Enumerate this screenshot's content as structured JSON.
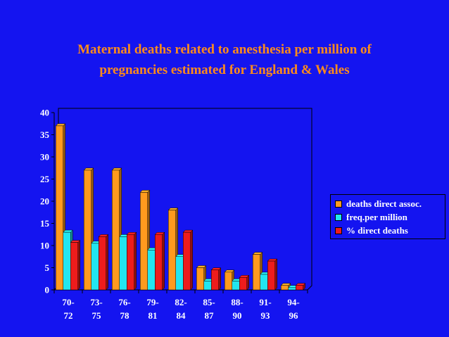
{
  "title": {
    "line1": "Maternal deaths related to anesthesia per million of",
    "line2": "pregnancies estimated for England & Wales"
  },
  "colors": {
    "background": "#1414f0",
    "title": "#ff8c1a",
    "series": [
      "#ff9a1e",
      "#22e6f0",
      "#ee1c1c"
    ]
  },
  "chart_data": {
    "type": "bar",
    "categories": [
      [
        "70-",
        "72"
      ],
      [
        "73-",
        "75"
      ],
      [
        "76-",
        "78"
      ],
      [
        "79-",
        "81"
      ],
      [
        "82-",
        "84"
      ],
      [
        "85-",
        "87"
      ],
      [
        "88-",
        "90"
      ],
      [
        "91-",
        "93"
      ],
      [
        "94-",
        "96"
      ]
    ],
    "series": [
      {
        "name": "deaths direct assoc.",
        "values": [
          37,
          27,
          27,
          22,
          18,
          5,
          4,
          8,
          1
        ]
      },
      {
        "name": "freq.per million",
        "values": [
          13,
          10.5,
          12,
          9,
          7.5,
          2,
          2,
          3.5,
          0.5
        ]
      },
      {
        "name": "% direct deaths",
        "values": [
          10.7,
          12,
          12.5,
          12.5,
          13,
          4.5,
          2.8,
          6.5,
          1
        ]
      }
    ],
    "ylim": [
      0,
      40
    ],
    "yticks": [
      0,
      5,
      10,
      15,
      20,
      25,
      30,
      35,
      40
    ],
    "grid": false,
    "legend": "right",
    "style": "3d"
  }
}
